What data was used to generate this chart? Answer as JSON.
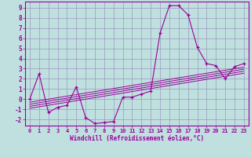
{
  "xlabel": "Windchill (Refroidissement éolien,°C)",
  "background_color": "#c0e0e0",
  "grid_color": "#9999bb",
  "line_color": "#990099",
  "x_data": [
    0,
    1,
    2,
    3,
    4,
    5,
    6,
    7,
    8,
    9,
    10,
    11,
    12,
    13,
    14,
    15,
    16,
    17,
    18,
    19,
    20,
    21,
    22,
    23
  ],
  "y_main": [
    0.0,
    2.5,
    -1.3,
    -0.8,
    -0.6,
    1.2,
    -1.8,
    -2.4,
    -2.3,
    -2.2,
    0.2,
    0.2,
    0.5,
    0.8,
    6.5,
    9.2,
    9.2,
    8.3,
    5.1,
    3.5,
    3.3,
    2.0,
    3.2,
    3.5
  ],
  "reg_lines": [
    [
      -0.9,
      -0.75,
      -0.6,
      -0.45,
      -0.3,
      -0.15,
      0.0,
      0.15,
      0.3,
      0.45,
      0.6,
      0.75,
      0.9,
      1.05,
      1.2,
      1.35,
      1.5,
      1.65,
      1.8,
      1.95,
      2.1,
      2.25,
      2.4,
      2.55
    ],
    [
      -0.7,
      -0.55,
      -0.4,
      -0.25,
      -0.1,
      0.05,
      0.2,
      0.35,
      0.5,
      0.65,
      0.8,
      0.95,
      1.1,
      1.25,
      1.4,
      1.55,
      1.7,
      1.85,
      2.0,
      2.15,
      2.3,
      2.45,
      2.6,
      2.75
    ],
    [
      -0.5,
      -0.35,
      -0.2,
      -0.05,
      0.1,
      0.25,
      0.4,
      0.55,
      0.7,
      0.85,
      1.0,
      1.15,
      1.3,
      1.45,
      1.6,
      1.75,
      1.9,
      2.05,
      2.2,
      2.35,
      2.5,
      2.65,
      2.8,
      2.95
    ],
    [
      -0.3,
      -0.15,
      0.0,
      0.15,
      0.3,
      0.45,
      0.6,
      0.75,
      0.9,
      1.05,
      1.2,
      1.35,
      1.5,
      1.65,
      1.8,
      1.95,
      2.1,
      2.25,
      2.4,
      2.55,
      2.7,
      2.85,
      3.0,
      3.15
    ]
  ],
  "xlim": [
    -0.5,
    23.5
  ],
  "ylim": [
    -2.6,
    9.6
  ],
  "xticks": [
    0,
    1,
    2,
    3,
    4,
    5,
    6,
    7,
    8,
    9,
    10,
    11,
    12,
    13,
    14,
    15,
    16,
    17,
    18,
    19,
    20,
    21,
    22,
    23
  ],
  "yticks": [
    -2,
    -1,
    0,
    1,
    2,
    3,
    4,
    5,
    6,
    7,
    8,
    9
  ]
}
